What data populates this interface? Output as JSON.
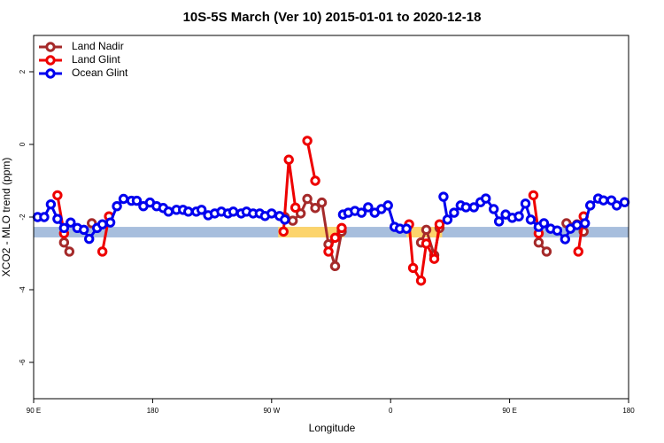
{
  "chart_data": {
    "type": "line",
    "title": "10S-5S March (Ver 10)   2015-01-01 to 2020-12-18",
    "xlabel": "Longitude",
    "ylabel": "XCO2 - MLO trend (ppm)",
    "xlim": [
      90,
      540
    ],
    "ylim": [
      -7,
      3
    ],
    "xticks": [
      {
        "value": 90,
        "label": "90 E"
      },
      180,
      {
        "value": 270,
        "label": "90 W"
      },
      {
        "value": 360,
        "label": "0"
      },
      {
        "value": 450,
        "label": "90 E"
      },
      {
        "value": 540,
        "label": "180"
      }
    ],
    "yticks": [
      2,
      0,
      -2,
      -4,
      -6
    ],
    "legend": "top-left",
    "band": {
      "ymin": -2.56,
      "ymax": -2.27,
      "color": "#a7bedd",
      "highlight_color": "#fcd46c",
      "highlight_ranges": [
        [
          275,
          325
        ],
        [
          372,
          399
        ]
      ]
    },
    "series": [
      {
        "name": "Land Nadir",
        "color": "#a52a2a",
        "x": [
          113,
          117,
          null,
          134,
          null,
          280,
          286,
          292,
          297,
          303,
          308,
          313,
          318,
          323,
          null,
          383,
          387,
          393,
          397,
          null,
          472,
          478,
          null,
          493,
          501,
          506
        ],
        "values": [
          -2.7,
          -2.95,
          null,
          -2.17,
          null,
          -2.0,
          -2.1,
          -1.9,
          -1.5,
          -1.75,
          -1.6,
          -2.75,
          -3.35,
          -2.4,
          null,
          -2.7,
          -2.35,
          -3.05,
          -2.3,
          null,
          -2.7,
          -2.95,
          null,
          -2.17,
          -2.2,
          -2.4
        ]
      },
      {
        "name": "Land Glint",
        "color": "#ee0000",
        "x": [
          108,
          113,
          null,
          142,
          147,
          null,
          279,
          283,
          288,
          null,
          297,
          303,
          null,
          313,
          318,
          323,
          null,
          374,
          377,
          383,
          387,
          393,
          397,
          null,
          468,
          472,
          null,
          502,
          506
        ],
        "values": [
          -1.4,
          -2.45,
          null,
          -2.95,
          -1.98,
          null,
          -2.4,
          -0.42,
          -1.74,
          null,
          0.1,
          -1.0,
          null,
          -2.95,
          -2.57,
          -2.3,
          null,
          -2.2,
          -3.4,
          -3.75,
          -2.73,
          -3.15,
          -2.2,
          null,
          -1.4,
          -2.45,
          null,
          -2.95,
          -1.98
        ]
      },
      {
        "name": "Ocean Glint",
        "color": "#0000ee",
        "x": [
          93,
          98,
          103,
          108,
          113,
          118,
          123,
          128,
          132,
          138,
          142,
          148,
          153,
          158,
          164,
          168,
          173,
          178,
          183,
          188,
          192,
          198,
          203,
          207,
          213,
          217,
          222,
          227,
          232,
          237,
          241,
          247,
          251,
          256,
          261,
          265,
          270,
          276,
          280,
          null,
          324,
          328,
          333,
          338,
          343,
          348,
          353,
          358,
          363,
          367,
          372,
          null,
          400,
          403,
          408,
          413,
          417,
          423,
          428,
          432,
          438,
          442,
          447,
          452,
          457,
          462,
          466,
          472,
          476,
          481,
          486,
          492,
          496,
          501,
          507,
          511,
          517,
          521,
          527,
          531,
          537
        ],
        "values": [
          -2.0,
          -2.0,
          -1.65,
          -2.05,
          -2.3,
          -2.15,
          -2.3,
          -2.35,
          -2.6,
          -2.3,
          -2.2,
          -2.15,
          -1.7,
          -1.5,
          -1.55,
          -1.55,
          -1.7,
          -1.6,
          -1.7,
          -1.75,
          -1.85,
          -1.8,
          -1.8,
          -1.85,
          -1.85,
          -1.8,
          -1.95,
          -1.9,
          -1.85,
          -1.9,
          -1.85,
          -1.9,
          -1.85,
          -1.9,
          -1.9,
          -1.97,
          -1.9,
          -1.97,
          -2.07,
          null,
          -1.93,
          -1.88,
          -1.83,
          -1.88,
          -1.73,
          -1.88,
          -1.78,
          -1.68,
          -2.27,
          -2.32,
          -2.32,
          null,
          -1.44,
          -2.07,
          -1.88,
          -1.68,
          -1.73,
          -1.73,
          -1.59,
          -1.49,
          -1.78,
          -2.12,
          -1.93,
          -2.02,
          -1.98,
          -1.63,
          -2.07,
          -2.27,
          -2.17,
          -2.32,
          -2.37,
          -2.61,
          -2.32,
          -2.22,
          -2.17,
          -1.68,
          -1.49,
          -1.54,
          -1.54,
          -1.68,
          -1.59
        ]
      }
    ]
  }
}
